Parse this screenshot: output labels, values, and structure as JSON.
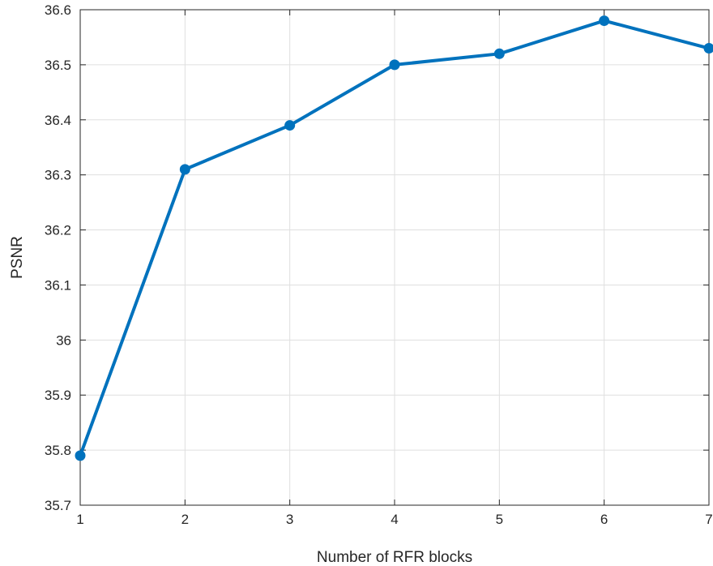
{
  "chart_data": {
    "type": "line",
    "title": "",
    "xlabel": "Number of RFR blocks",
    "ylabel": "PSNR",
    "xlim": [
      1,
      7
    ],
    "ylim": [
      35.7,
      36.6
    ],
    "x_ticks": [
      1,
      2,
      3,
      4,
      5,
      6,
      7
    ],
    "x_tick_labels": [
      "1",
      "2",
      "3",
      "4",
      "5",
      "6",
      "7"
    ],
    "y_ticks": [
      35.7,
      35.8,
      35.9,
      36.0,
      36.1,
      36.2,
      36.3,
      36.4,
      36.5,
      36.6
    ],
    "y_tick_labels": [
      "35.7",
      "35.8",
      "35.9",
      "36",
      "36.1",
      "36.2",
      "36.3",
      "36.4",
      "36.5",
      "36.6"
    ],
    "grid": true,
    "series": [
      {
        "x": [
          1,
          2,
          3,
          4,
          5,
          6,
          7
        ],
        "y": [
          35.79,
          36.31,
          36.39,
          36.5,
          36.52,
          36.58,
          36.53
        ],
        "color": "#0072BD",
        "marker": "circle"
      }
    ]
  }
}
